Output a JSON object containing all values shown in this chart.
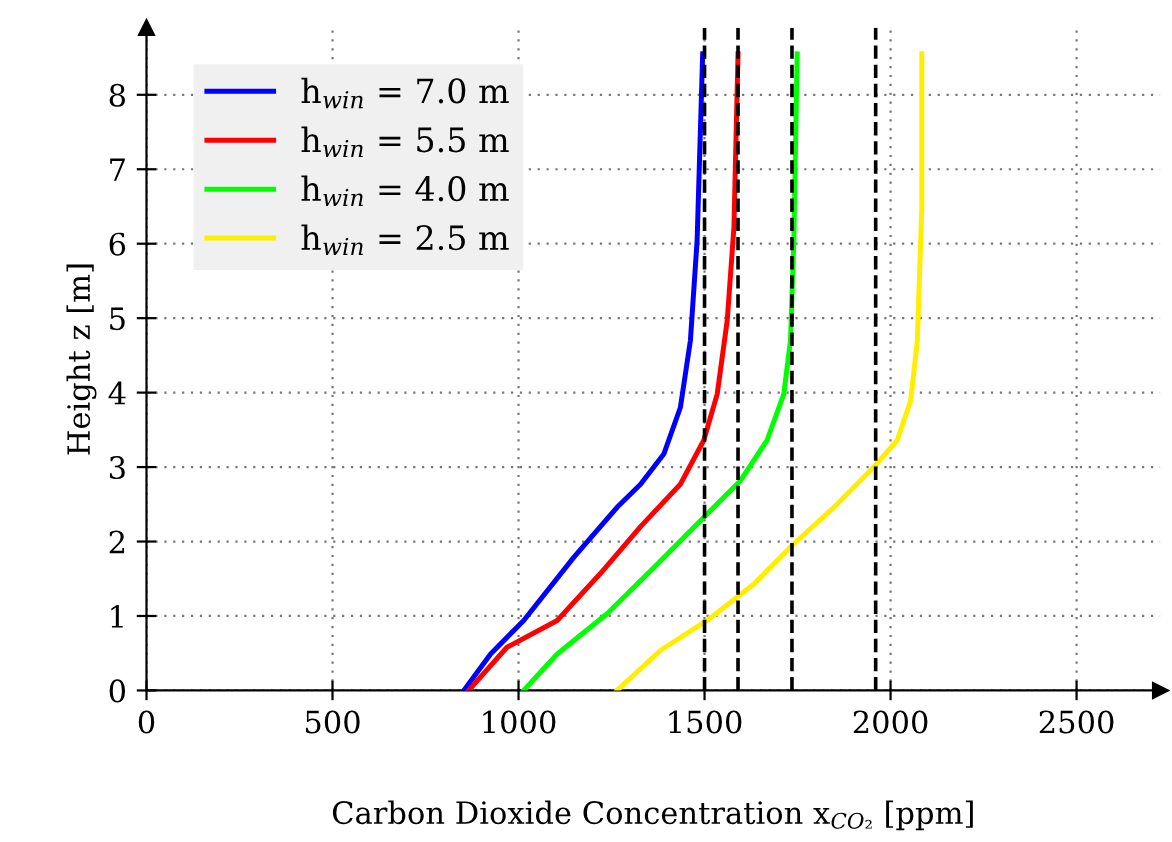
{
  "chart_data": {
    "type": "line",
    "xlabel": "Carbon Dioxide Concentration x$_{CO₂}$ [ppm]",
    "ylabel": "Height z [m]",
    "xlim": [
      0,
      2725
    ],
    "ylim": [
      0,
      8.9
    ],
    "xticks": [
      0,
      500,
      1000,
      1500,
      2000,
      2500
    ],
    "yticks": [
      0,
      1,
      2,
      3,
      4,
      5,
      6,
      7,
      8
    ],
    "grid": true,
    "legend": "top left",
    "line_style": "solid",
    "marker": "none",
    "series": [
      {
        "name": "h$_{win}$ = 7.0 m",
        "color": "#0000ff",
        "x": [
          853,
          925,
          1014,
          1149,
          1265,
          1328,
          1391,
          1435,
          1462,
          1480,
          1495
        ],
        "values": [
          0,
          0.49,
          0.94,
          1.79,
          2.46,
          2.77,
          3.18,
          3.8,
          4.7,
          6.04,
          8.55
        ]
      },
      {
        "name": "h$_{win}$ = 5.5 m",
        "color": "#ff0000",
        "x": [
          866,
          969,
          1104,
          1220,
          1328,
          1435,
          1498,
          1534,
          1561,
          1579,
          1590
        ],
        "values": [
          0,
          0.58,
          0.94,
          1.57,
          2.2,
          2.77,
          3.36,
          3.98,
          4.97,
          6.22,
          8.55
        ]
      },
      {
        "name": "h$_{win}$ = 4.0 m",
        "color": "#00ff00",
        "x": [
          1014,
          1104,
          1238,
          1364,
          1489,
          1597,
          1668,
          1713,
          1731,
          1740,
          1749
        ],
        "values": [
          0,
          0.49,
          1.03,
          1.65,
          2.28,
          2.82,
          3.36,
          3.98,
          4.7,
          6.04,
          8.55
        ]
      },
      {
        "name": "h$_{win}$ = 2.5 m",
        "color": "#ffee00",
        "x": [
          1265,
          1382,
          1507,
          1633,
          1740,
          1848,
          1955,
          2018,
          2054,
          2072,
          2084,
          2084
        ],
        "values": [
          0,
          0.54,
          0.94,
          1.43,
          1.97,
          2.46,
          3.0,
          3.36,
          3.89,
          4.7,
          6.49,
          8.55
        ]
      }
    ],
    "ref_lines": [
      {
        "axis": "x",
        "value": 1500,
        "color": "#000000",
        "line_style": "dashed"
      },
      {
        "axis": "x",
        "value": 1590,
        "color": "#000000",
        "line_style": "dashed"
      },
      {
        "axis": "x",
        "value": 1735,
        "color": "#000000",
        "line_style": "dashed"
      },
      {
        "axis": "x",
        "value": 1960,
        "color": "#000000",
        "line_style": "dashed"
      }
    ]
  }
}
